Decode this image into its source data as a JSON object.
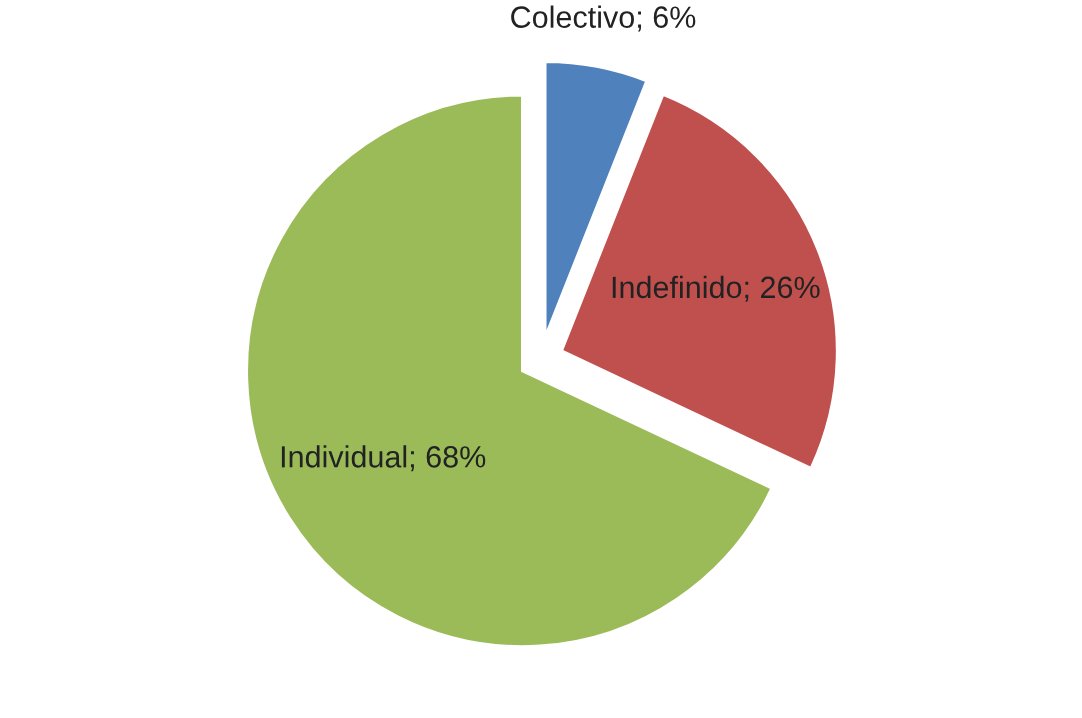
{
  "chart_data": {
    "type": "pie",
    "categories": [
      "Colectivo",
      "Indefinido",
      "Individual"
    ],
    "values": [
      6,
      26,
      68
    ],
    "value_labels": [
      "6%",
      "26%",
      "68%"
    ],
    "colors": [
      "#4f81bd",
      "#c0504d",
      "#9bbb59"
    ],
    "legend": false
  }
}
